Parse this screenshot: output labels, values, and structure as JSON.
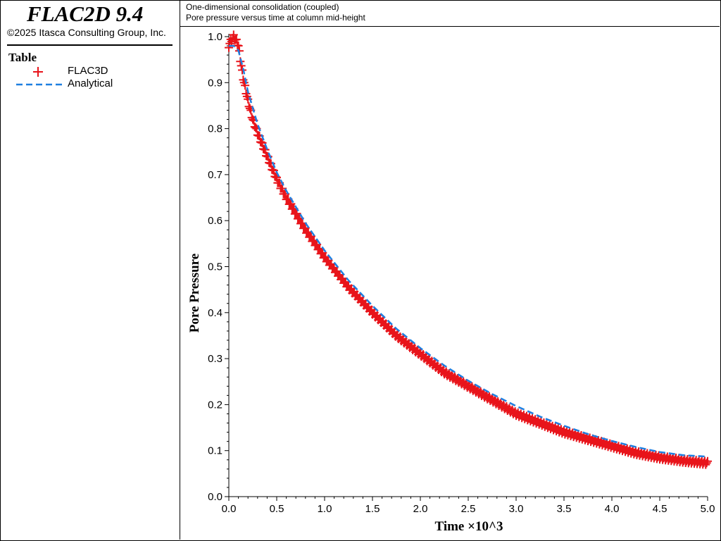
{
  "app": {
    "title": "FLAC2D 9.4",
    "copyright": "©2025 Itasca Consulting Group, Inc."
  },
  "legend": {
    "title": "Table",
    "items": [
      {
        "label": "FLAC3D",
        "marker": "plus",
        "color": "#e8141b"
      },
      {
        "label": "Analytical",
        "marker": "dashed-line",
        "color": "#1f7fe0"
      }
    ]
  },
  "header": {
    "title": "One-dimensional consolidation (coupled)",
    "subtitle": "Pore pressure versus time at column mid-height"
  },
  "chart_data": {
    "type": "line",
    "xlabel": "Time ×10^3",
    "ylabel": "Pore Pressure",
    "xlim": [
      0.0,
      5.0
    ],
    "ylim": [
      0.0,
      1.0
    ],
    "xticks": [
      "0.0",
      "0.5",
      "1.0",
      "1.5",
      "2.0",
      "2.5",
      "3.0",
      "3.5",
      "4.0",
      "4.5",
      "5.0"
    ],
    "yticks": [
      "0.0",
      "0.1",
      "0.2",
      "0.3",
      "0.4",
      "0.5",
      "0.6",
      "0.7",
      "0.8",
      "0.9",
      "1.0"
    ],
    "grid": false,
    "legend_position": "left-panel",
    "series": [
      {
        "name": "FLAC3D",
        "style": "markers-plus",
        "color": "#e8141b",
        "x": [
          0.0,
          0.02,
          0.05,
          0.08,
          0.1,
          0.12,
          0.15,
          0.2,
          0.25,
          0.3,
          0.4,
          0.5,
          0.6,
          0.8,
          1.0,
          1.25,
          1.5,
          1.75,
          2.0,
          2.25,
          2.5,
          2.75,
          3.0,
          3.25,
          3.5,
          3.75,
          4.0,
          4.25,
          4.5,
          4.75,
          5.0
        ],
        "y": [
          0.98,
          0.99,
          1.0,
          0.99,
          0.98,
          0.95,
          0.91,
          0.86,
          0.82,
          0.79,
          0.74,
          0.69,
          0.65,
          0.58,
          0.52,
          0.455,
          0.4,
          0.35,
          0.31,
          0.27,
          0.24,
          0.21,
          0.18,
          0.16,
          0.14,
          0.125,
          0.11,
          0.095,
          0.085,
          0.078,
          0.073
        ]
      },
      {
        "name": "Analytical",
        "style": "dashed-line",
        "color": "#1f7fe0",
        "x": [
          0.0,
          0.05,
          0.1,
          0.15,
          0.2,
          0.25,
          0.3,
          0.4,
          0.5,
          0.6,
          0.8,
          1.0,
          1.25,
          1.5,
          1.75,
          2.0,
          2.25,
          2.5,
          2.75,
          3.0,
          3.25,
          3.5,
          3.75,
          4.0,
          4.25,
          4.5,
          4.75,
          5.0
        ],
        "y": [
          0.98,
          0.98,
          0.97,
          0.93,
          0.88,
          0.845,
          0.81,
          0.755,
          0.705,
          0.665,
          0.595,
          0.535,
          0.47,
          0.415,
          0.365,
          0.323,
          0.285,
          0.252,
          0.223,
          0.197,
          0.174,
          0.154,
          0.136,
          0.121,
          0.108,
          0.097,
          0.09,
          0.087
        ]
      }
    ]
  }
}
